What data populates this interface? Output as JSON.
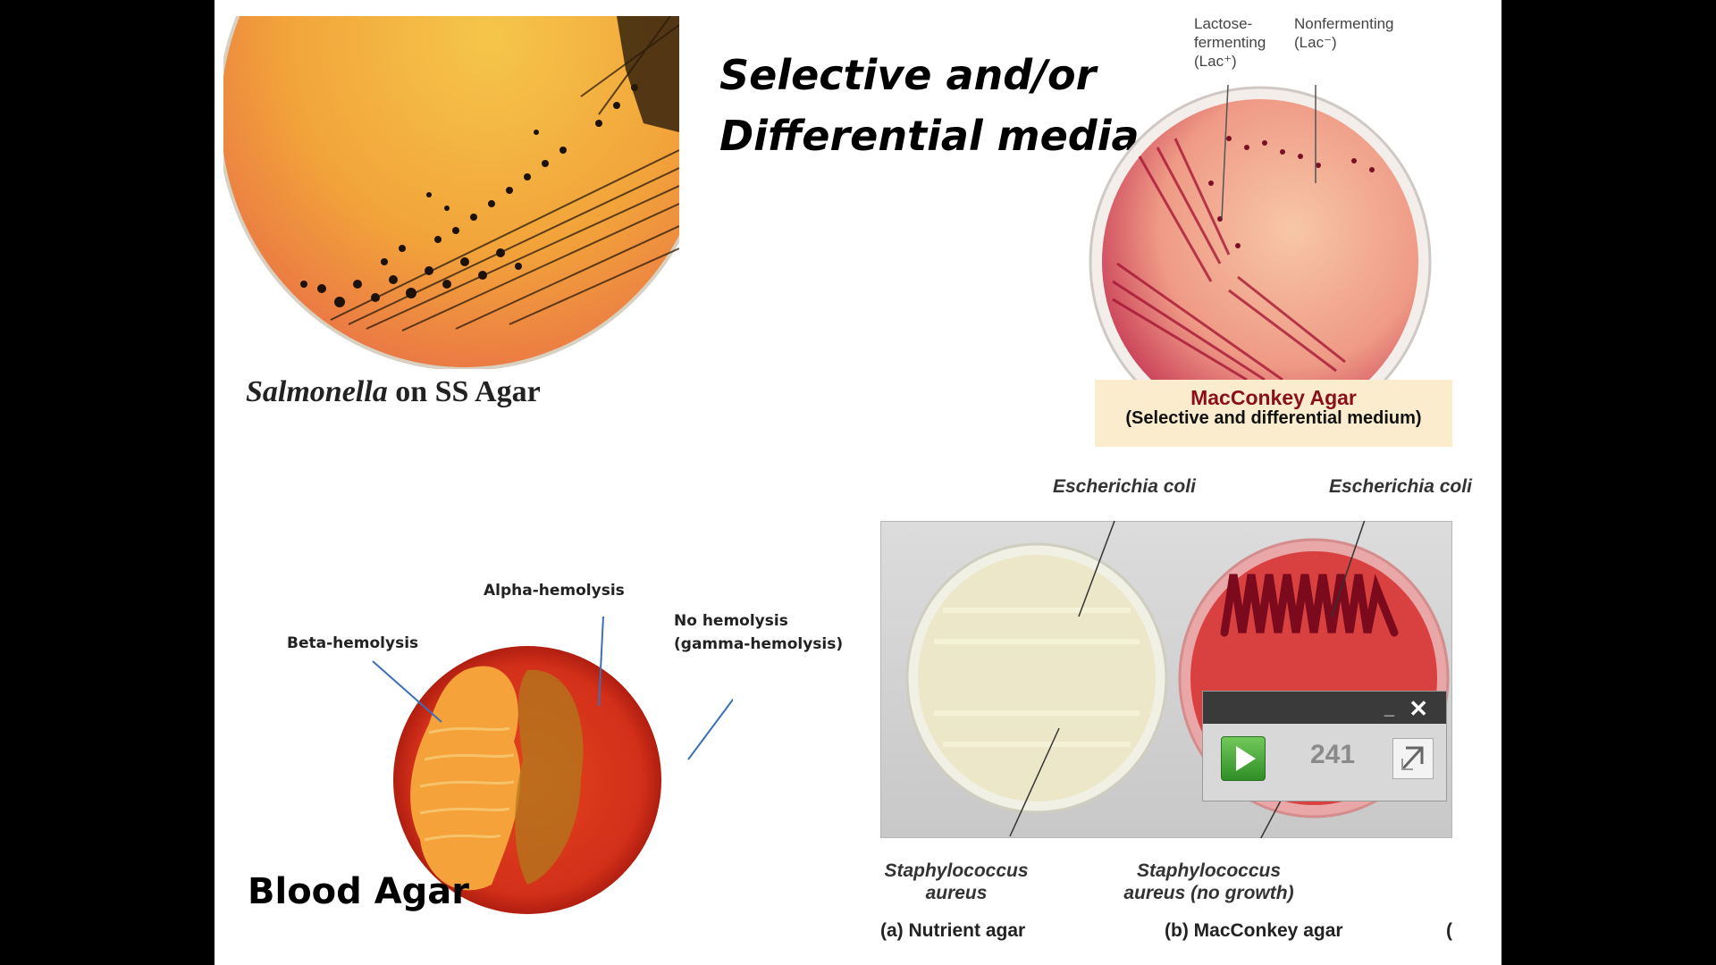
{
  "slide": {
    "title_line1": "Selective and/or",
    "title_line2": "Differential media",
    "ss_agar": {
      "organism": "Salmonella",
      "rest": " on SS Agar"
    },
    "macconkey": {
      "label_lac_pos": "Lactose-\nfermenting\n(Lac⁺)",
      "label_lac_neg": "Nonfermenting\n(Lac⁻)",
      "box_title": "MacConkey Agar",
      "box_subtitle": "(Selective and differential medium)"
    },
    "blood_agar": {
      "title": "Blood Agar",
      "alpha": "Alpha-hemolysis",
      "beta": "Beta-hemolysis",
      "gamma_line1": "No hemolysis",
      "gamma_line2": "(gamma-hemolysis)"
    },
    "comparison": {
      "ecoli_left": "Escherichia coli",
      "ecoli_right": "Escherichia coli",
      "staph_left_line1": "Staphylococcus",
      "staph_left_line2": "aureus",
      "staph_right_line1": "Staphylococcus",
      "staph_right_line2": "aureus (no growth)",
      "caption_a": "(a) Nutrient agar",
      "caption_b": "(b) MacConkey agar",
      "caption_c": "("
    }
  },
  "widget": {
    "minimize": "_",
    "close": "✕",
    "counter": "241",
    "play_icon": "play-icon",
    "resize_icon": "resize-icon"
  }
}
